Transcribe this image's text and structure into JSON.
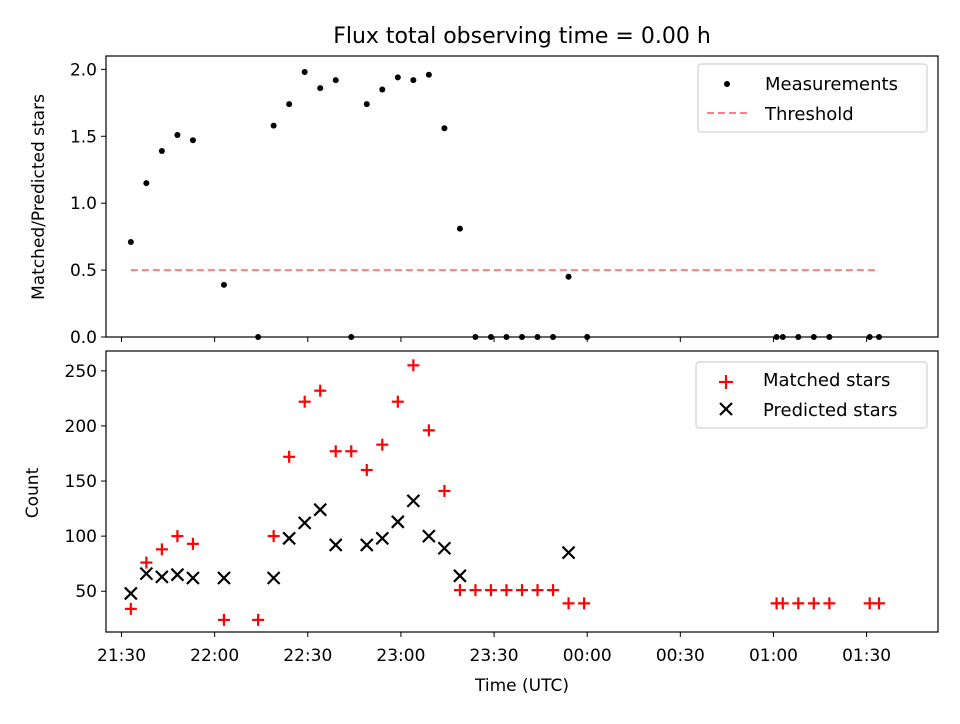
{
  "title": "Flux total observing time = 0.00 h",
  "colors": {
    "measurements": "#000000",
    "threshold": "#ff7f7f",
    "matched": "#ff0000",
    "predicted": "#000000"
  },
  "shared_x": {
    "label": "Time (UTC)",
    "range": [
      "21:25",
      "01:53"
    ],
    "ticks": [
      "21:30",
      "22:00",
      "22:30",
      "23:00",
      "23:30",
      "00:00",
      "00:30",
      "01:00",
      "01:30"
    ]
  },
  "chart_data": [
    {
      "type": "scatter",
      "xlabel": "",
      "ylabel": "Matched/Predicted stars",
      "ylim": [
        0,
        2.1
      ],
      "yticks": [
        "0.0",
        "0.5",
        "1.0",
        "1.5",
        "2.0"
      ],
      "legend": {
        "placement": "top-right",
        "entries": [
          "Measurements",
          "Threshold"
        ]
      },
      "series": [
        {
          "name": "Measurements",
          "marker": "dot",
          "x": [
            "21:33",
            "21:38",
            "21:43",
            "21:48",
            "21:53",
            "22:03",
            "22:14",
            "22:19",
            "22:24",
            "22:29",
            "22:34",
            "22:39",
            "22:44",
            "22:49",
            "22:54",
            "22:59",
            "23:04",
            "23:09",
            "23:14",
            "23:19",
            "23:24",
            "23:29",
            "23:34",
            "23:39",
            "23:44",
            "23:49",
            "23:54",
            "00:00",
            "01:01",
            "01:03",
            "01:08",
            "01:13",
            "01:18",
            "01:31",
            "01:34"
          ],
          "y": [
            0.71,
            1.15,
            1.39,
            1.51,
            1.47,
            0.39,
            0.0,
            1.58,
            1.74,
            1.98,
            1.86,
            1.92,
            0.0,
            1.74,
            1.85,
            1.94,
            1.92,
            1.96,
            1.56,
            0.81,
            0.0,
            0.0,
            0.0,
            0.0,
            0.0,
            0.0,
            0.45,
            0.0,
            0.0,
            0.0,
            0.0,
            0.0,
            0.0,
            0.0,
            0.0
          ]
        },
        {
          "name": "Threshold",
          "marker": "dashed-line",
          "x": [
            "21:33",
            "01:34"
          ],
          "y": [
            0.5,
            0.5
          ]
        }
      ]
    },
    {
      "type": "scatter",
      "xlabel": "Time (UTC)",
      "ylabel": "Count",
      "ylim": [
        13,
        268
      ],
      "yticks": [
        "50",
        "100",
        "150",
        "200",
        "250"
      ],
      "legend": {
        "placement": "top-right",
        "entries": [
          "Matched stars",
          "Predicted stars"
        ]
      },
      "series": [
        {
          "name": "Matched stars",
          "marker": "plus",
          "x": [
            "21:33",
            "21:38",
            "21:43",
            "21:48",
            "21:53",
            "22:03",
            "22:14",
            "22:19",
            "22:24",
            "22:29",
            "22:34",
            "22:39",
            "22:44",
            "22:49",
            "22:54",
            "22:59",
            "23:04",
            "23:09",
            "23:14",
            "23:19",
            "23:24",
            "23:29",
            "23:34",
            "23:39",
            "23:44",
            "23:49",
            "23:54",
            "23:59",
            "01:01",
            "01:03",
            "01:08",
            "01:13",
            "01:18",
            "01:31",
            "01:34"
          ],
          "y": [
            34,
            76,
            88,
            100,
            93,
            24,
            24,
            100,
            172,
            222,
            232,
            177,
            177,
            160,
            183,
            222,
            255,
            196,
            141,
            51,
            51,
            51,
            51,
            51,
            51,
            51,
            39,
            39,
            39,
            39,
            39,
            39,
            39,
            39,
            39
          ]
        },
        {
          "name": "Predicted stars",
          "marker": "x",
          "x": [
            "21:33",
            "21:38",
            "21:43",
            "21:48",
            "21:53",
            "22:03",
            "22:19",
            "22:24",
            "22:29",
            "22:34",
            "22:39",
            "22:49",
            "22:54",
            "22:59",
            "23:04",
            "23:09",
            "23:14",
            "23:19",
            "23:54"
          ],
          "y": [
            48,
            66,
            63,
            65,
            62,
            62,
            62,
            98,
            112,
            124,
            92,
            92,
            98,
            113,
            132,
            100,
            89,
            64,
            85
          ]
        }
      ]
    }
  ]
}
